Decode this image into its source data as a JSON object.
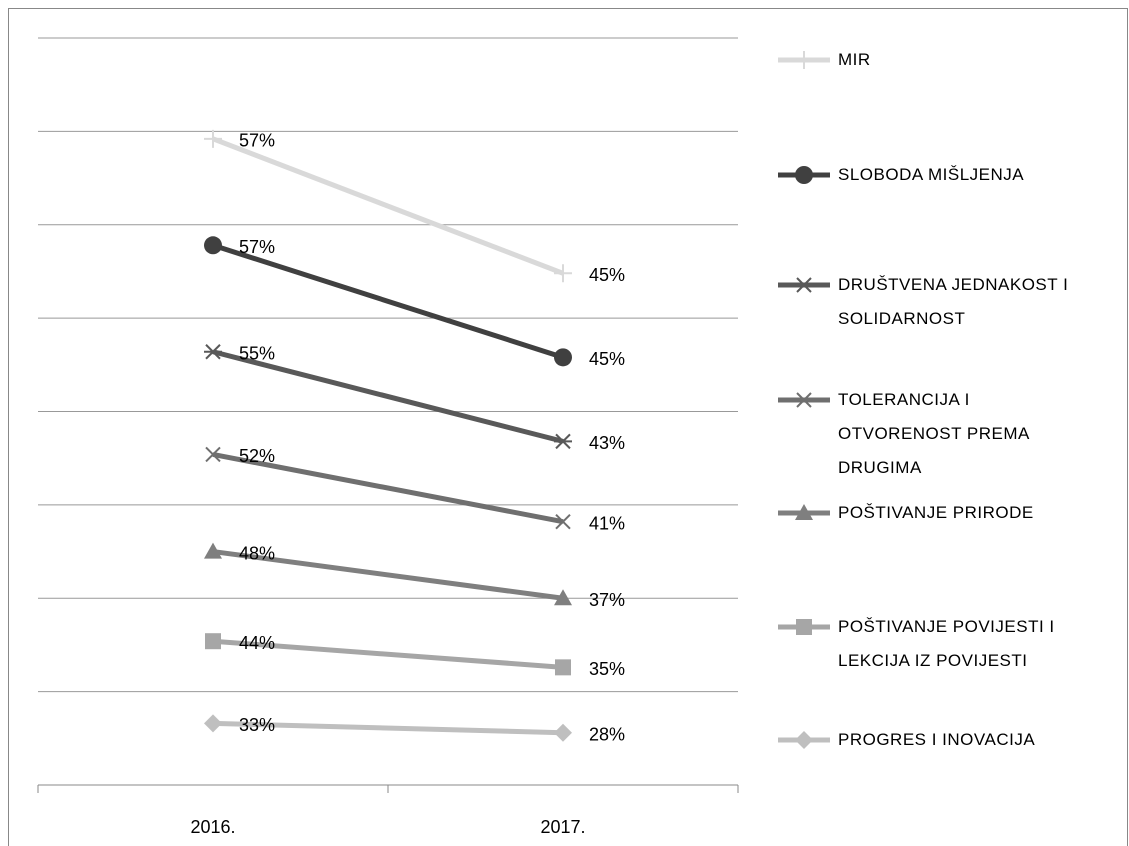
{
  "chart_data": {
    "type": "line",
    "stacked": true,
    "categories": [
      "2016.",
      "2017."
    ],
    "ylim": [
      0,
      400
    ],
    "yticks": [
      0,
      50,
      100,
      150,
      200,
      250,
      300,
      350,
      400
    ],
    "grid": true,
    "legend": "right",
    "series": [
      {
        "name": "PROGRES I INOVACIJA",
        "color": "#bfbfbf",
        "marker": "diamond",
        "values": [
          33,
          28
        ],
        "value_labels": [
          "33%",
          "28%"
        ]
      },
      {
        "name": "POŠTIVANJE POVIJESTI I LEKCIJA IZ POVIJESTI",
        "color": "#a6a6a6",
        "marker": "square",
        "values": [
          44,
          35
        ],
        "value_labels": [
          "44%",
          "35%"
        ]
      },
      {
        "name": "POŠTIVANJE PRIRODE",
        "color": "#7f7f7f",
        "marker": "triangle",
        "values": [
          48,
          37
        ],
        "value_labels": [
          "48%",
          "37%"
        ]
      },
      {
        "name": "TOLERANCIJA I OTVORENOST PREMA DRUGIMA",
        "color": "#6f6f6f",
        "marker": "x",
        "values": [
          52,
          41
        ],
        "value_labels": [
          "52%",
          "41%"
        ]
      },
      {
        "name": "DRUŠTVENA JEDNAKOST I SOLIDARNOST",
        "color": "#595959",
        "marker": "star",
        "values": [
          55,
          43
        ],
        "value_labels": [
          "55%",
          "43%"
        ]
      },
      {
        "name": "SLOBODA MIŠLJENJA",
        "color": "#404040",
        "marker": "circle",
        "values": [
          57,
          45
        ],
        "value_labels": [
          "57%",
          "45%"
        ]
      },
      {
        "name": "MIR",
        "color": "#d9d9d9",
        "marker": "plus",
        "values": [
          57,
          45
        ],
        "value_labels": [
          "57%",
          "45%"
        ]
      }
    ]
  }
}
